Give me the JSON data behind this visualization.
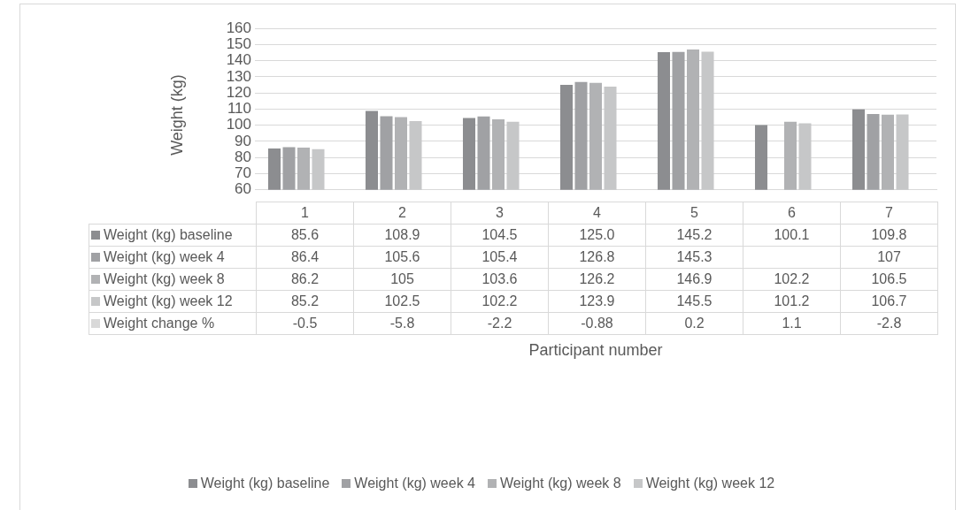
{
  "chart_data": {
    "type": "bar",
    "annotations": [
      "Participant number"
    ],
    "ylabel": "Weight (kg)",
    "categories": [
      "1",
      "2",
      "3",
      "4",
      "5",
      "6",
      "7"
    ],
    "series": [
      {
        "name": "Weight (kg) baseline",
        "color": "#8c8d90",
        "values": [
          85.6,
          108.9,
          104.5,
          125,
          145.2,
          100.1,
          109.8
        ],
        "value_labels": [
          "85.6",
          "108.9",
          "104.5",
          "125.0",
          "145.2",
          "100.1",
          "109.8"
        ]
      },
      {
        "name": "Weight (kg) week 4",
        "color": "#a0a1a4",
        "values": [
          86.4,
          105.6,
          105.4,
          126.8,
          145.3,
          null,
          107
        ],
        "value_labels": [
          "86.4",
          "105.6",
          "105.4",
          "126.8",
          "145.3",
          null,
          "107"
        ]
      },
      {
        "name": "Weight (kg) week 8",
        "color": "#b1b2b4",
        "values": [
          86.2,
          105,
          103.6,
          126.2,
          146.9,
          102.2,
          106.5
        ],
        "value_labels": [
          "86.2",
          "105",
          "103.6",
          "126.2",
          "146.9",
          "102.2",
          "106.5"
        ]
      },
      {
        "name": "Weight (kg) week 12",
        "color": "#c6c7c8",
        "values": [
          85.2,
          102.5,
          102.2,
          123.9,
          145.5,
          101.2,
          106.7
        ],
        "value_labels": [
          "85.2",
          "102.5",
          "102.2",
          "123.9",
          "145.5",
          "101.2",
          "106.7"
        ]
      },
      {
        "name": "Weight change  %",
        "color": "#d9d9d9",
        "values": [
          null,
          null,
          null,
          null,
          null,
          null,
          null
        ],
        "value_labels": [
          "-0.5",
          "-5.8",
          "-2.2",
          "-0.88",
          "0.2",
          "1.1",
          "-2.8"
        ]
      }
    ],
    "ylim": [
      60,
      160
    ],
    "yticks": [
      60,
      70,
      80,
      90,
      100,
      110,
      120,
      130,
      140,
      150,
      160
    ],
    "grid": "y",
    "legend": "bottom"
  }
}
